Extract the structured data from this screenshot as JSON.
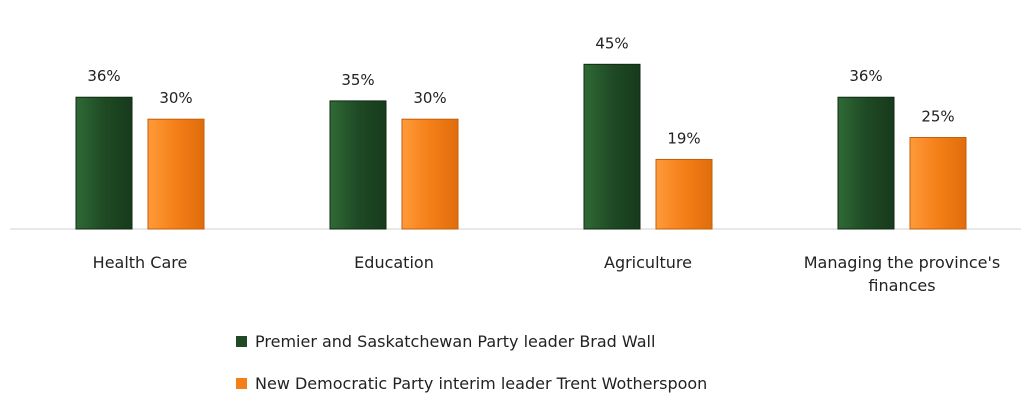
{
  "chart_data": {
    "type": "bar",
    "categories": [
      "Health Care",
      "Education",
      "Agriculture",
      "Managing the province's finances"
    ],
    "category_lines": [
      [
        "Health Care"
      ],
      [
        "Education"
      ],
      [
        "Agriculture"
      ],
      [
        "Managing the province's",
        "finances"
      ]
    ],
    "series": [
      {
        "name": "Premier and Saskatchewan Party leader Brad Wall",
        "values": [
          36,
          35,
          45,
          36
        ],
        "labels": [
          "36%",
          "35%",
          "45%",
          "36%"
        ],
        "color": "#1f4a24"
      },
      {
        "name": "New Democratic Party interim leader Trent Wotherspoon",
        "values": [
          30,
          30,
          19,
          25
        ],
        "labels": [
          "30%",
          "30%",
          "19%",
          "25%"
        ],
        "color": "#f47f18"
      }
    ],
    "ylim": [
      0,
      50
    ],
    "grid": false,
    "legend_position": "bottom"
  }
}
